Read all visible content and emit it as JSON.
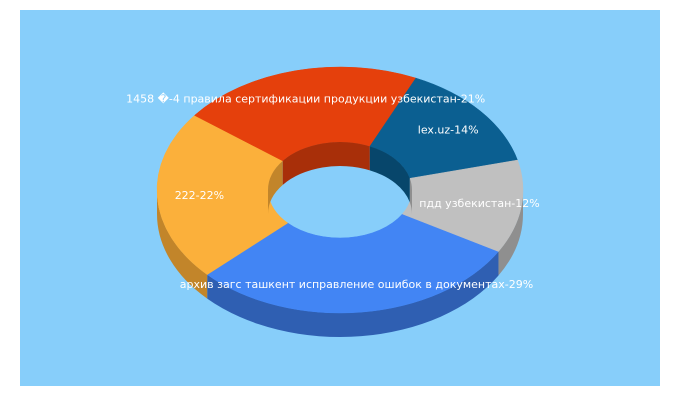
{
  "colors": {
    "background": "#ffffff",
    "panel": "#87cefa",
    "label_text": "#ffffff"
  },
  "chart_data": {
    "type": "pie",
    "variant": "3d-donut",
    "title": "",
    "legend": "none",
    "slices": [
      {
        "label": "архив загс ташкент исправление ошибок в документах-29%",
        "value": 29,
        "color": "#4285f4",
        "side_color": "#2f5fb2"
      },
      {
        "label": "222-22%",
        "value": 22,
        "color": "#fbb03b",
        "side_color": "#c2852a"
      },
      {
        "label": "1458 �-4 правила сертификации продукции узбекистан-21%",
        "value": 21,
        "color": "#e5400c",
        "side_color": "#a82f09"
      },
      {
        "label": "lex.uz-14%",
        "value": 14,
        "color": "#0b5f91",
        "side_color": "#07466b"
      },
      {
        "label": "пдд узбекистан-12%",
        "value": 12,
        "color": "#c0c0c0",
        "side_color": "#8f8f8f"
      }
    ]
  }
}
